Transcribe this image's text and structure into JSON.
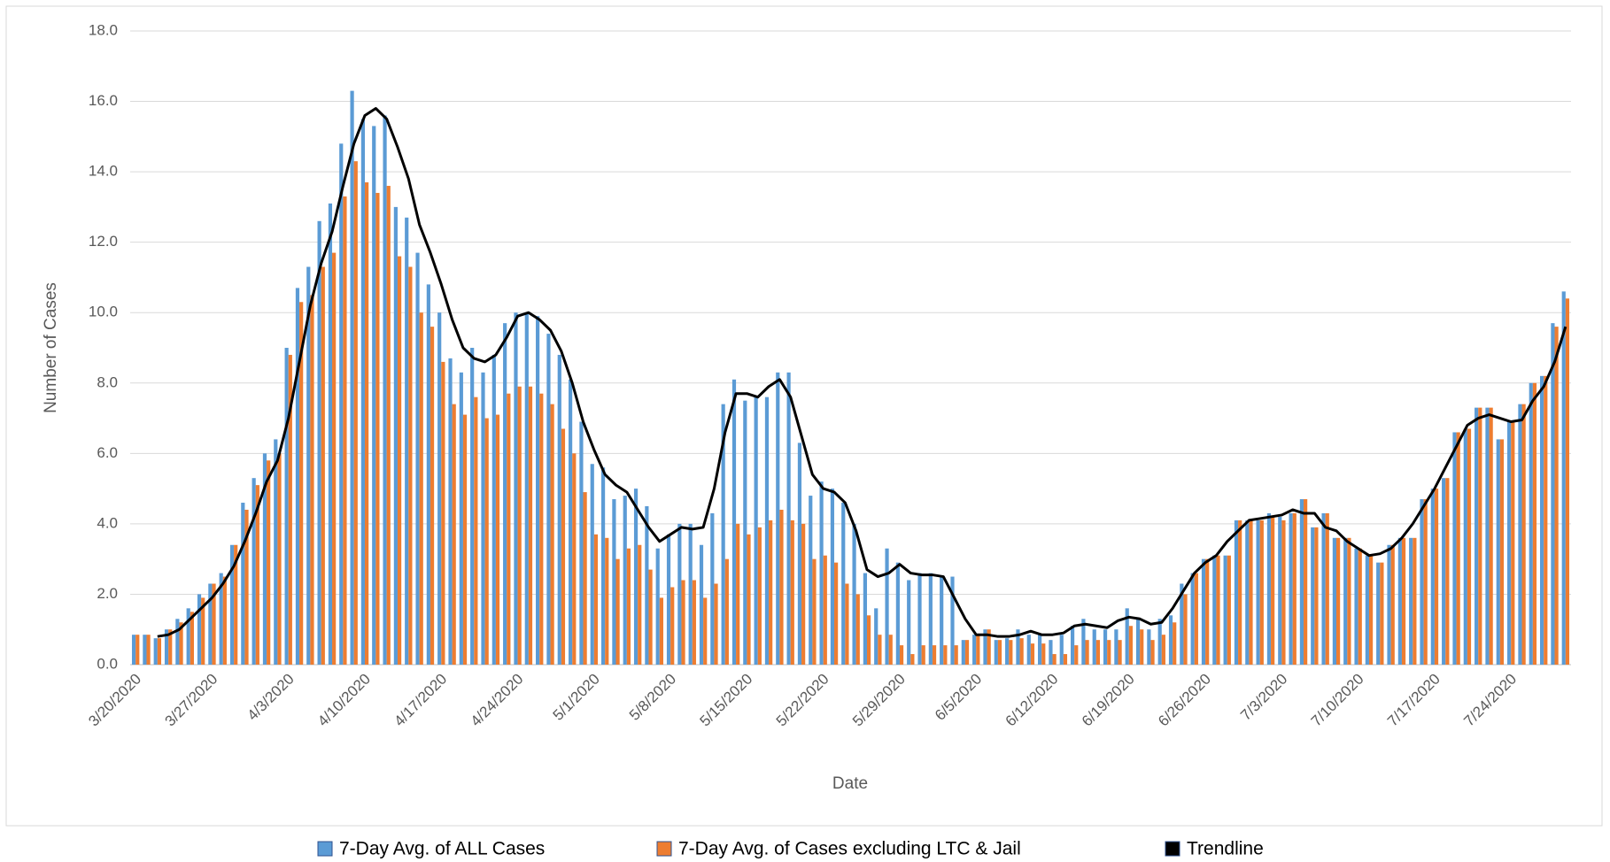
{
  "chart_data": {
    "type": "bar",
    "y_label": "Number of Cases",
    "x_label": "Date",
    "categories": [
      "3/20/2020",
      null,
      null,
      null,
      null,
      null,
      null,
      "3/27/2020",
      null,
      null,
      null,
      null,
      null,
      null,
      "4/3/2020",
      null,
      null,
      null,
      null,
      null,
      null,
      "4/10/2020",
      null,
      null,
      null,
      null,
      null,
      null,
      "4/17/2020",
      null,
      null,
      null,
      null,
      null,
      null,
      "4/24/2020",
      null,
      null,
      null,
      null,
      null,
      null,
      "5/1/2020",
      null,
      null,
      null,
      null,
      null,
      null,
      "5/8/2020",
      null,
      null,
      null,
      null,
      null,
      null,
      "5/15/2020",
      null,
      null,
      null,
      null,
      null,
      null,
      "5/22/2020",
      null,
      null,
      null,
      null,
      null,
      null,
      "5/29/2020",
      null,
      null,
      null,
      null,
      null,
      null,
      "6/5/2020",
      null,
      null,
      null,
      null,
      null,
      null,
      "6/12/2020",
      null,
      null,
      null,
      null,
      null,
      null,
      "6/19/2020",
      null,
      null,
      null,
      null,
      null,
      null,
      "6/26/2020",
      null,
      null,
      null,
      null,
      null,
      null,
      "7/3/2020",
      null,
      null,
      null,
      null,
      null,
      null,
      "7/10/2020",
      null,
      null,
      null,
      null,
      null,
      null,
      "7/17/2020",
      null,
      null,
      null,
      null,
      null,
      null,
      "7/24/2020",
      null,
      null,
      null,
      null,
      null
    ],
    "series": [
      {
        "name": "7-Day Avg. of ALL Cases",
        "type": "bar",
        "color": "#5b9bd5",
        "values": [
          0.85,
          0.85,
          0.75,
          1.0,
          1.3,
          1.6,
          2.0,
          2.3,
          2.6,
          3.4,
          4.6,
          5.3,
          6.0,
          6.4,
          9.0,
          10.7,
          11.3,
          12.6,
          13.1,
          14.8,
          16.3,
          15.5,
          15.3,
          15.6,
          13.0,
          12.7,
          11.7,
          10.8,
          10.0,
          8.7,
          8.3,
          9.0,
          8.3,
          8.8,
          9.7,
          10.0,
          10.0,
          9.9,
          9.4,
          8.8,
          8.1,
          6.9,
          5.7,
          5.6,
          4.7,
          4.8,
          5.0,
          4.5,
          3.3,
          3.7,
          4.0,
          4.0,
          3.4,
          4.3,
          7.4,
          8.1,
          7.5,
          7.6,
          7.6,
          8.3,
          8.3,
          6.3,
          4.8,
          5.2,
          5.0,
          4.6,
          4.0,
          2.6,
          1.6,
          3.3,
          2.9,
          2.4,
          2.6,
          2.6,
          2.5,
          2.5,
          0.7,
          0.85,
          1.0,
          0.7,
          0.75,
          1.0,
          0.85,
          0.85,
          0.7,
          0.85,
          1.1,
          1.3,
          1.0,
          1.0,
          1.0,
          1.6,
          1.3,
          1.0,
          1.3,
          1.4,
          2.3,
          2.6,
          3.0,
          3.1,
          3.1,
          4.1,
          4.1,
          4.1,
          4.3,
          4.2,
          4.3,
          4.7,
          3.9,
          4.3,
          3.6,
          3.6,
          3.3,
          3.1,
          2.9,
          3.4,
          3.6,
          3.6,
          4.7,
          5.0,
          5.3,
          6.6,
          6.7,
          7.3,
          7.3,
          6.4,
          6.9,
          7.4,
          8.0,
          8.2,
          9.7,
          10.6
        ]
      },
      {
        "name": "7-Day Avg. of Cases excluding LTC & Jail",
        "type": "bar",
        "color": "#ed7d31",
        "values": [
          0.85,
          0.85,
          0.75,
          1.0,
          1.2,
          1.5,
          1.9,
          2.3,
          2.5,
          3.4,
          4.4,
          5.1,
          5.8,
          6.0,
          8.8,
          10.3,
          10.5,
          11.3,
          11.7,
          13.3,
          14.3,
          13.7,
          13.4,
          13.6,
          11.6,
          11.3,
          10.0,
          9.6,
          8.6,
          7.4,
          7.1,
          7.6,
          7.0,
          7.1,
          7.7,
          7.9,
          7.9,
          7.7,
          7.4,
          6.7,
          6.0,
          4.9,
          3.7,
          3.6,
          3.0,
          3.3,
          3.4,
          2.7,
          1.9,
          2.2,
          2.4,
          2.4,
          1.9,
          2.3,
          3.0,
          4.0,
          3.7,
          3.9,
          4.1,
          4.4,
          4.1,
          4.0,
          3.0,
          3.1,
          2.9,
          2.3,
          2.0,
          1.4,
          0.85,
          0.85,
          0.55,
          0.3,
          0.55,
          0.55,
          0.55,
          0.55,
          0.7,
          0.85,
          1.0,
          0.7,
          0.7,
          0.75,
          0.6,
          0.6,
          0.3,
          0.3,
          0.55,
          0.7,
          0.7,
          0.7,
          0.7,
          1.1,
          1.0,
          0.7,
          0.85,
          1.2,
          2.0,
          2.6,
          3.0,
          3.1,
          3.1,
          4.1,
          4.1,
          4.1,
          4.2,
          4.1,
          4.3,
          4.7,
          3.9,
          4.3,
          3.6,
          3.6,
          3.3,
          3.1,
          2.9,
          3.4,
          3.6,
          3.6,
          4.7,
          5.0,
          5.3,
          6.6,
          6.7,
          7.3,
          7.3,
          6.4,
          6.9,
          7.4,
          8.0,
          8.2,
          9.6,
          10.4
        ]
      },
      {
        "name": "Trendline",
        "type": "line",
        "color": "#000000",
        "values": [
          null,
          null,
          0.8,
          0.85,
          1.0,
          1.3,
          1.6,
          1.9,
          2.3,
          2.8,
          3.5,
          4.3,
          5.2,
          5.8,
          7.0,
          8.6,
          10.2,
          11.4,
          12.3,
          13.6,
          14.8,
          15.6,
          15.8,
          15.5,
          14.7,
          13.8,
          12.5,
          11.7,
          10.8,
          9.8,
          9.0,
          8.7,
          8.6,
          8.8,
          9.3,
          9.9,
          10.0,
          9.8,
          9.5,
          8.9,
          8.0,
          6.9,
          6.1,
          5.4,
          5.1,
          4.9,
          4.4,
          3.9,
          3.5,
          3.7,
          3.9,
          3.85,
          3.9,
          5.0,
          6.6,
          7.7,
          7.7,
          7.6,
          7.9,
          8.1,
          7.6,
          6.5,
          5.4,
          5.0,
          4.9,
          4.6,
          3.8,
          2.7,
          2.5,
          2.6,
          2.85,
          2.6,
          2.55,
          2.55,
          2.5,
          1.9,
          1.3,
          0.85,
          0.85,
          0.8,
          0.8,
          0.85,
          0.95,
          0.85,
          0.85,
          0.9,
          1.1,
          1.15,
          1.1,
          1.05,
          1.25,
          1.35,
          1.3,
          1.15,
          1.2,
          1.6,
          2.1,
          2.6,
          2.9,
          3.1,
          3.5,
          3.8,
          4.1,
          4.15,
          4.2,
          4.25,
          4.4,
          4.3,
          4.3,
          3.9,
          3.8,
          3.5,
          3.3,
          3.1,
          3.15,
          3.3,
          3.6,
          4.0,
          4.5,
          5.0,
          5.6,
          6.2,
          6.8,
          7.0,
          7.1,
          7.0,
          6.9,
          6.95,
          7.5,
          7.9,
          8.6,
          9.6
        ]
      }
    ],
    "ylim": [
      0,
      18
    ],
    "yticks": [
      {
        "value": 0,
        "label": "0.0"
      },
      {
        "value": 2,
        "label": "2.0"
      },
      {
        "value": 4,
        "label": "4.0"
      },
      {
        "value": 6,
        "label": "6.0"
      },
      {
        "value": 8,
        "label": "8.0"
      },
      {
        "value": 10,
        "label": "10.0"
      },
      {
        "value": 12,
        "label": "12.0"
      },
      {
        "value": 14,
        "label": "14.0"
      },
      {
        "value": 16,
        "label": "16.0"
      },
      {
        "value": 18,
        "label": "18.0"
      }
    ],
    "grid": true,
    "legend": "bottom"
  }
}
